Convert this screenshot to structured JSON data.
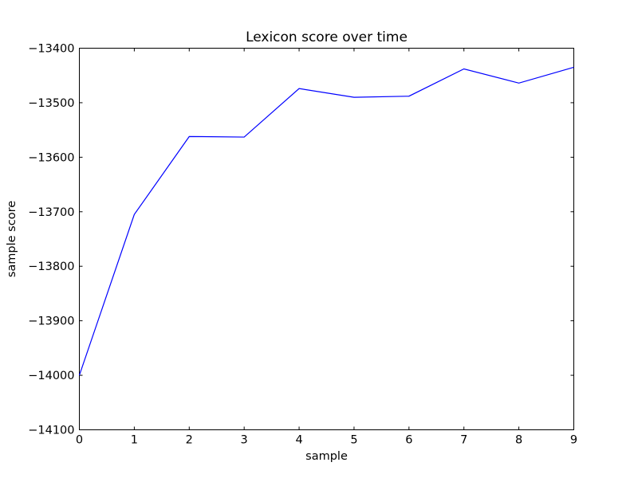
{
  "chart_data": {
    "type": "line",
    "title": "Lexicon score over time",
    "xlabel": "sample",
    "ylabel": "sample score",
    "xlim": [
      0,
      9
    ],
    "ylim": [
      -14100,
      -13400
    ],
    "x_ticks": [
      0,
      1,
      2,
      3,
      4,
      5,
      6,
      7,
      8,
      9
    ],
    "y_ticks": [
      -14100,
      -14000,
      -13900,
      -13800,
      -13700,
      -13600,
      -13500,
      -13400
    ],
    "x_tick_labels": [
      "0",
      "1",
      "2",
      "3",
      "4",
      "5",
      "6",
      "7",
      "8",
      "9"
    ],
    "y_tick_labels": [
      "−14100",
      "−14000",
      "−13900",
      "−13800",
      "−13700",
      "−13600",
      "−13500",
      "−13400"
    ],
    "grid": false,
    "legend": "none",
    "series": [
      {
        "color": "#0000ff",
        "x": [
          0,
          1,
          2,
          3,
          4,
          5,
          6,
          7,
          8,
          9
        ],
        "values": [
          -14000,
          -13705,
          -13562,
          -13563,
          -13474,
          -13490,
          -13488,
          -13438,
          -13464,
          -13435
        ]
      }
    ]
  }
}
